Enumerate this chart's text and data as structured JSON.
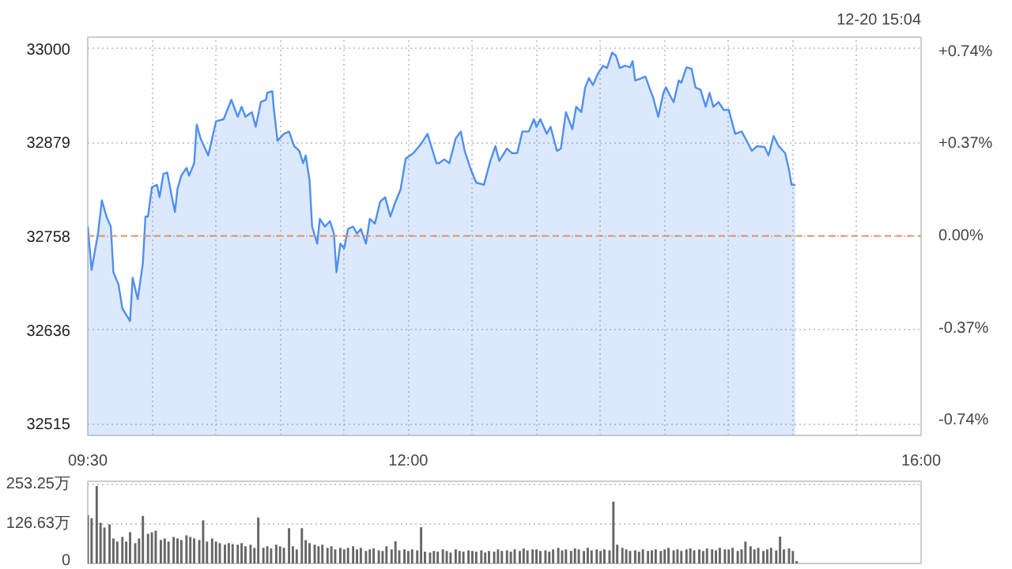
{
  "chart_data": [
    {
      "type": "area",
      "annotations": [
        "12-20 15:04"
      ],
      "grid": true,
      "xlim": [
        9.5,
        16
      ],
      "xticks": [
        {
          "value": 9.5,
          "label": "09:30"
        },
        {
          "value": 10,
          "label": null
        },
        {
          "value": 10.5,
          "label": null
        },
        {
          "value": 11,
          "label": null
        },
        {
          "value": 11.5,
          "label": null
        },
        {
          "value": 12,
          "label": "12:00"
        },
        {
          "value": 12.5,
          "label": null
        },
        {
          "value": 13,
          "label": null
        },
        {
          "value": 13.5,
          "label": null
        },
        {
          "value": 14,
          "label": null
        },
        {
          "value": 14.5,
          "label": null
        },
        {
          "value": 15,
          "label": null
        },
        {
          "value": 15.5,
          "label": null
        },
        {
          "value": 16,
          "label": "16:00"
        }
      ],
      "ylim": [
        32500,
        33015
      ],
      "yticks": [
        32515,
        32636,
        32758,
        32879,
        33000
      ],
      "y2lim": [
        -0.8,
        0.8
      ],
      "y2ticks": [
        {
          "value": 0.74,
          "label": "+0.74%"
        },
        {
          "value": 0.37,
          "label": "+0.37%"
        },
        {
          "value": 0,
          "label": "0.00%"
        },
        {
          "value": -0.37,
          "label": "-0.37%"
        },
        {
          "value": -0.74,
          "label": "-0.74%"
        }
      ],
      "ref_lines": [
        {
          "axis": "y",
          "value": 32758,
          "color": "#e0936b",
          "line_style": "dashed"
        }
      ],
      "series": [
        {
          "color": "#4f8ff0",
          "x": [
            9.5,
            9.53,
            9.58,
            9.61,
            9.65,
            9.68,
            9.7,
            9.74,
            9.77,
            9.83,
            9.85,
            9.89,
            9.93,
            9.95,
            9.97,
            10.0,
            10.04,
            10.06,
            10.09,
            10.12,
            10.16,
            10.18,
            10.2,
            10.23,
            10.27,
            10.29,
            10.33,
            10.35,
            10.38,
            10.44,
            10.5,
            10.56,
            10.62,
            10.67,
            10.7,
            10.73,
            10.78,
            10.81,
            10.85,
            10.89,
            10.9,
            10.94,
            10.95,
            10.98,
            11.03,
            11.07,
            11.11,
            11.15,
            11.18,
            11.2,
            11.23,
            11.25,
            11.29,
            11.31,
            11.35,
            11.39,
            11.42,
            11.44,
            11.47,
            11.5,
            11.53,
            11.57,
            11.6,
            11.63,
            11.67,
            11.7,
            11.74,
            11.78,
            11.82,
            11.86,
            11.9,
            11.94,
            11.98,
            12.04,
            12.1,
            12.15,
            12.22,
            12.24,
            12.28,
            12.32,
            12.37,
            12.41,
            12.44,
            12.49,
            12.53,
            12.59,
            12.64,
            12.68,
            12.71,
            12.77,
            12.81,
            12.85,
            12.89,
            12.94,
            12.98,
            13.0,
            13.03,
            13.08,
            13.11,
            13.16,
            13.19,
            13.23,
            13.28,
            13.31,
            13.35,
            13.38,
            13.41,
            13.44,
            13.48,
            13.52,
            13.55,
            13.59,
            13.62,
            13.65,
            13.69,
            13.73,
            13.75,
            13.77,
            13.82,
            13.85,
            13.88,
            13.91,
            13.95,
            13.99,
            14.01,
            14.04,
            14.07,
            14.11,
            14.13,
            14.17,
            14.21,
            14.24,
            14.28,
            14.32,
            14.35,
            14.38,
            14.42,
            14.46,
            14.5,
            14.55,
            14.6,
            14.63,
            14.68,
            14.72,
            14.78,
            14.81,
            14.85,
            14.89,
            14.94,
            14.97,
            14.99,
            15.02
          ],
          "values": [
            32770,
            32714,
            32761,
            32804,
            32781,
            32770,
            32711,
            32695,
            32664,
            32648,
            32704,
            32676,
            32723,
            32783,
            32783,
            32821,
            32824,
            32808,
            32838,
            32840,
            32805,
            32789,
            32819,
            32836,
            32846,
            32836,
            32852,
            32902,
            32884,
            32862,
            32906,
            32909,
            32934,
            32912,
            32925,
            32912,
            32918,
            32899,
            32931,
            32934,
            32943,
            32945,
            32925,
            32881,
            32890,
            32893,
            32874,
            32868,
            32852,
            32862,
            32830,
            32770,
            32748,
            32780,
            32770,
            32777,
            32761,
            32711,
            32748,
            32742,
            32767,
            32770,
            32761,
            32767,
            32748,
            32780,
            32774,
            32802,
            32808,
            32783,
            32802,
            32818,
            32858,
            32865,
            32877,
            32890,
            32852,
            32852,
            32857,
            32852,
            32884,
            32893,
            32868,
            32843,
            32827,
            32824,
            32855,
            32874,
            32855,
            32871,
            32865,
            32865,
            32893,
            32893,
            32909,
            32899,
            32909,
            32890,
            32899,
            32868,
            32871,
            32918,
            32896,
            32925,
            32918,
            32950,
            32962,
            32953,
            32968,
            32978,
            32975,
            32995,
            32991,
            32975,
            32978,
            32976,
            32984,
            32959,
            32962,
            32964,
            32950,
            32937,
            32912,
            32943,
            32950,
            32940,
            32931,
            32959,
            32956,
            32976,
            32974,
            32950,
            32947,
            32925,
            32943,
            32925,
            32931,
            32921,
            32921,
            32890,
            32893,
            32884,
            32868,
            32874,
            32873,
            32862,
            32887,
            32874,
            32865,
            32843,
            32824,
            32824
          ]
        }
      ]
    },
    {
      "type": "bar",
      "grid": "y",
      "tick_labels": "y",
      "xlim": [
        9.5,
        16
      ],
      "ylim": [
        0,
        263
      ],
      "yticks": [
        0,
        {
          "value": 126.63,
          "label": "126.63万"
        },
        {
          "value": 253.25,
          "label": "253.25万"
        }
      ],
      "series": [
        {
          "color": "#666666",
          "x": [
            9.5,
            9.53,
            9.57,
            9.6,
            9.63,
            9.67,
            9.7,
            9.73,
            9.77,
            9.8,
            9.83,
            9.87,
            9.9,
            9.93,
            9.97,
            10,
            10.03,
            10.07,
            10.1,
            10.13,
            10.17,
            10.2,
            10.23,
            10.27,
            10.3,
            10.33,
            10.37,
            10.4,
            10.43,
            10.47,
            10.5,
            10.53,
            10.57,
            10.6,
            10.63,
            10.67,
            10.7,
            10.73,
            10.77,
            10.8,
            10.83,
            10.87,
            10.9,
            10.93,
            10.97,
            11,
            11.03,
            11.07,
            11.1,
            11.13,
            11.17,
            11.2,
            11.23,
            11.27,
            11.3,
            11.33,
            11.37,
            11.4,
            11.43,
            11.47,
            11.5,
            11.53,
            11.57,
            11.6,
            11.63,
            11.67,
            11.7,
            11.73,
            11.77,
            11.8,
            11.83,
            11.87,
            11.9,
            11.93,
            11.97,
            12,
            12.03,
            12.07,
            12.1,
            12.13,
            12.17,
            12.2,
            12.23,
            12.27,
            12.3,
            12.33,
            12.37,
            12.4,
            12.43,
            12.47,
            12.5,
            12.53,
            12.57,
            12.6,
            12.63,
            12.67,
            12.7,
            12.73,
            12.77,
            12.8,
            12.83,
            12.87,
            12.9,
            12.93,
            12.97,
            13,
            13.03,
            13.07,
            13.1,
            13.13,
            13.17,
            13.2,
            13.23,
            13.27,
            13.3,
            13.33,
            13.37,
            13.4,
            13.43,
            13.47,
            13.5,
            13.53,
            13.57,
            13.6,
            13.63,
            13.67,
            13.7,
            13.73,
            13.77,
            13.8,
            13.83,
            13.87,
            13.9,
            13.93,
            13.97,
            14,
            14.03,
            14.07,
            14.1,
            14.13,
            14.17,
            14.2,
            14.23,
            14.27,
            14.3,
            14.33,
            14.37,
            14.4,
            14.43,
            14.47,
            14.5,
            14.53,
            14.57,
            14.6,
            14.63,
            14.67,
            14.7,
            14.73,
            14.77,
            14.8,
            14.83,
            14.87,
            14.9,
            14.93,
            14.97,
            15,
            15.03
          ],
          "values": [
            155,
            145,
            248,
            130,
            115,
            125,
            80,
            70,
            85,
            70,
            100,
            65,
            80,
            152,
            95,
            100,
            105,
            75,
            80,
            70,
            85,
            80,
            75,
            90,
            85,
            80,
            75,
            138,
            70,
            80,
            70,
            65,
            60,
            65,
            62,
            60,
            65,
            55,
            60,
            50,
            147,
            50,
            55,
            48,
            60,
            55,
            50,
            113,
            55,
            45,
            113,
            75,
            65,
            60,
            55,
            60,
            50,
            55,
            45,
            50,
            45,
            50,
            55,
            45,
            50,
            40,
            45,
            48,
            42,
            40,
            55,
            45,
            71,
            42,
            45,
            40,
            45,
            42,
            116,
            38,
            35,
            40,
            38,
            45,
            40,
            35,
            45,
            40,
            38,
            42,
            40,
            38,
            42,
            35,
            40,
            38,
            45,
            40,
            42,
            38,
            45,
            40,
            48,
            42,
            45,
            45,
            40,
            42,
            38,
            45,
            50,
            42,
            45,
            40,
            48,
            45,
            40,
            50,
            42,
            45,
            40,
            45,
            42,
            198,
            60,
            50,
            45,
            40,
            42,
            38,
            45,
            40,
            42,
            45,
            40,
            45,
            50,
            42,
            45,
            40,
            45,
            48,
            42,
            45,
            40,
            48,
            45,
            42,
            50,
            45,
            45,
            50,
            40,
            45,
            70,
            55,
            45,
            50,
            40,
            45,
            50,
            42,
            86,
            45,
            48,
            40,
            8
          ]
        }
      ]
    }
  ]
}
